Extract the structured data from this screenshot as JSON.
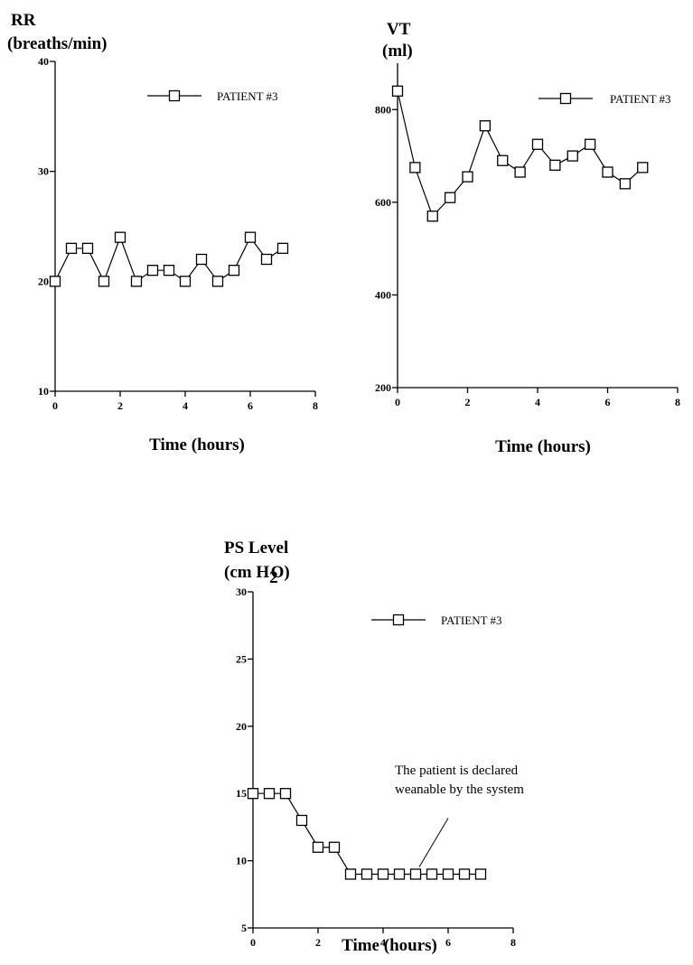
{
  "chart_data": [
    {
      "type": "line",
      "ylabel_lines": [
        "RR",
        "(breaths/min)"
      ],
      "xlabel": "Time (hours)",
      "xlim": [
        0,
        8
      ],
      "ylim": [
        10,
        40
      ],
      "x_ticks": [
        0,
        2,
        4,
        6,
        8
      ],
      "y_ticks": [
        10,
        20,
        30,
        40
      ],
      "x": [
        0,
        0.5,
        1,
        1.5,
        2,
        2.5,
        3,
        3.5,
        4,
        4.5,
        5,
        5.5,
        6,
        6.5,
        7
      ],
      "series": [
        {
          "name": "PATIENT #3",
          "values": [
            20,
            23,
            23,
            20,
            24,
            20,
            21,
            21,
            20,
            22,
            20,
            21,
            24,
            22,
            23
          ]
        }
      ],
      "legend": "top-right",
      "grid": false
    },
    {
      "type": "line",
      "ylabel_lines": [
        "VT",
        "(ml)"
      ],
      "xlabel": "Time (hours)",
      "xlim": [
        0,
        8
      ],
      "ylim": [
        200,
        900
      ],
      "x_ticks": [
        0,
        2,
        4,
        6,
        8
      ],
      "y_ticks": [
        200,
        400,
        600,
        800
      ],
      "x": [
        0,
        0.5,
        1,
        1.5,
        2,
        2.5,
        3,
        3.5,
        4,
        4.5,
        5,
        5.5,
        6,
        6.5,
        7
      ],
      "series": [
        {
          "name": "PATIENT #3",
          "values": [
            840,
            675,
            570,
            610,
            655,
            765,
            690,
            665,
            725,
            680,
            700,
            725,
            665,
            640,
            675
          ]
        }
      ],
      "legend": "top-right",
      "grid": false
    },
    {
      "type": "line",
      "ylabel_lines": [
        "PS Level",
        "(cm H",
        "2",
        "O)"
      ],
      "xlabel": "Time (hours)",
      "xlim": [
        0,
        8
      ],
      "ylim": [
        5,
        30
      ],
      "x_ticks": [
        0,
        2,
        4,
        6,
        8
      ],
      "y_ticks": [
        5,
        10,
        15,
        20,
        25,
        30
      ],
      "x": [
        0,
        0.5,
        1,
        1.5,
        2,
        2.5,
        3,
        3.5,
        4,
        4.5,
        5,
        5.5,
        6,
        6.5,
        7
      ],
      "series": [
        {
          "name": "PATIENT #3",
          "values": [
            15,
            15,
            15,
            13,
            11,
            11,
            9,
            9,
            9,
            9,
            9,
            9,
            9,
            9,
            9
          ]
        }
      ],
      "annotation": {
        "lines": [
          "The patient is declared",
          "weanable by the system"
        ],
        "point_x": 5,
        "point_y": 9
      },
      "legend": "top-right",
      "grid": false
    }
  ]
}
